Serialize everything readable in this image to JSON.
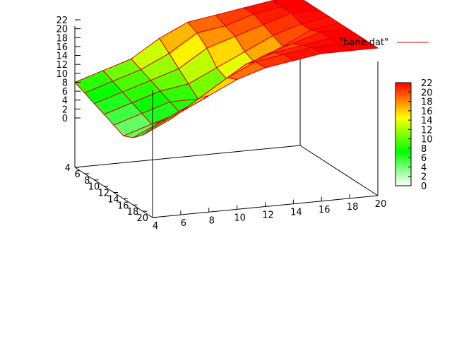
{
  "chart_data": {
    "type": "surface3d",
    "legend": {
      "label": "\"bane.dat\"",
      "line_color": "#d40000",
      "placement": "top-right"
    },
    "z_axis": {
      "ticks": [
        0,
        2,
        4,
        6,
        8,
        10,
        12,
        14,
        16,
        18,
        20,
        22
      ],
      "range": [
        0,
        22
      ]
    },
    "x_axis": {
      "ticks": [
        4,
        6,
        8,
        10,
        12,
        14,
        16,
        18,
        20
      ],
      "range": [
        4,
        20
      ]
    },
    "y_axis": {
      "ticks": [
        4,
        6,
        8,
        10,
        12,
        14,
        16,
        18,
        20
      ],
      "range": [
        4,
        20
      ]
    },
    "colorbox": {
      "ticks": [
        0,
        2,
        4,
        6,
        8,
        10,
        12,
        14,
        16,
        18,
        20,
        22
      ],
      "range": [
        0,
        22
      ],
      "palette": [
        "#ffffff",
        "#00ff00",
        "#ffff00",
        "#ff0000"
      ]
    },
    "surface_line_color": "#d40000",
    "grid": false,
    "x": [
      4,
      6,
      8,
      10,
      12,
      14,
      16,
      18,
      20
    ],
    "y": [
      4,
      6,
      8,
      10,
      12,
      14,
      16,
      18,
      20
    ],
    "z": [
      [
        8,
        10,
        12,
        16,
        19,
        20,
        21,
        22,
        22
      ],
      [
        7,
        9,
        11,
        14,
        18,
        19,
        21,
        22,
        22
      ],
      [
        6,
        8,
        10,
        12,
        16,
        18,
        20,
        22,
        22
      ],
      [
        5,
        7,
        9,
        10,
        13,
        16,
        19,
        21,
        22
      ],
      [
        4,
        6,
        8,
        8,
        12,
        15,
        18,
        21,
        22
      ],
      [
        3,
        5,
        7,
        10,
        15,
        18,
        20,
        22,
        22
      ],
      [
        4,
        7,
        10,
        14,
        18,
        20,
        21,
        22,
        22
      ],
      [
        6,
        9,
        13,
        17,
        20,
        21,
        22,
        22,
        22
      ],
      [
        9,
        12,
        15,
        18,
        20,
        21,
        22,
        22,
        22
      ]
    ]
  }
}
